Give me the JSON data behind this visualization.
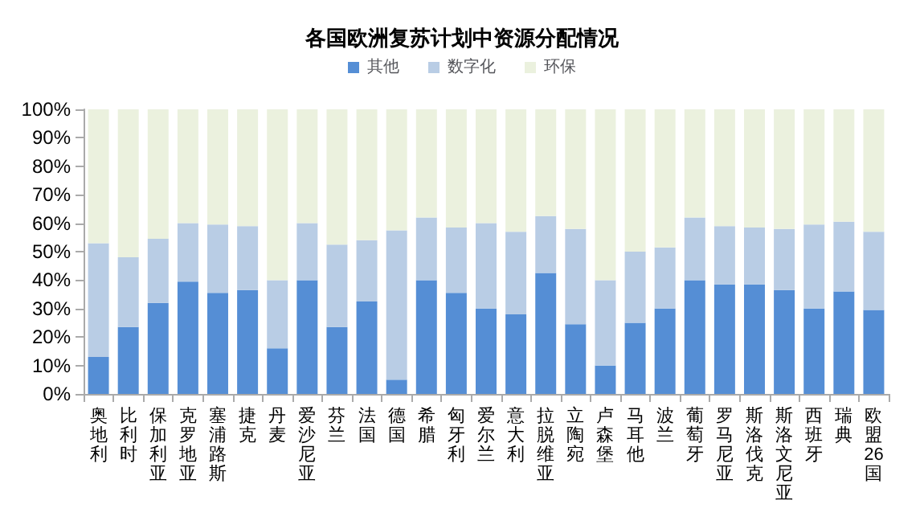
{
  "chart_data": {
    "type": "bar",
    "stacked": true,
    "title": "各国欧洲复苏计划中资源分配情况",
    "legend": "top",
    "grid": false,
    "categories": [
      "奥地利",
      "比利时",
      "保加利亚",
      "克罗地亚",
      "塞浦路斯",
      "捷克",
      "丹麦",
      "爱沙尼亚",
      "芬兰",
      "法国",
      "德国",
      "希腊",
      "匈牙利",
      "爱尔兰",
      "意大利",
      "拉脱维亚",
      "立陶宛",
      "卢森堡",
      "马耳他",
      "波兰",
      "葡萄牙",
      "罗马尼亚",
      "斯洛伐克",
      "斯洛文尼亚",
      "西班牙",
      "瑞典",
      "欧盟26国"
    ],
    "series": [
      {
        "name": "其他",
        "color": "#558ed5",
        "values": [
          13,
          23.5,
          32,
          39.5,
          35.5,
          36.5,
          16,
          40,
          23.5,
          32.5,
          5,
          40,
          35.5,
          30,
          28,
          42.5,
          24.5,
          10,
          25,
          30,
          40,
          38.5,
          38.5,
          36.5,
          30,
          36,
          29.5
        ]
      },
      {
        "name": "数字化",
        "color": "#b9cde5",
        "values": [
          40,
          24.5,
          22.5,
          20.5,
          24,
          22.5,
          24,
          20,
          29,
          21.5,
          52.5,
          22,
          23,
          30,
          29,
          20,
          33.5,
          30,
          25,
          21.5,
          22,
          20.5,
          20,
          21.5,
          29.5,
          24.5,
          27.5
        ]
      },
      {
        "name": "环保",
        "color": "#ebf1de",
        "values": [
          47,
          52,
          45.5,
          40,
          40.5,
          41,
          60,
          40,
          47.5,
          46,
          42.5,
          38,
          41.5,
          40,
          43,
          37.5,
          42,
          60,
          50,
          48.5,
          38,
          41,
          41.5,
          42,
          40.5,
          39.5,
          43
        ]
      }
    ],
    "ylim": [
      0,
      100
    ],
    "yticks": [
      {
        "value": 0,
        "label": "0%"
      },
      {
        "value": 10,
        "label": "10%"
      },
      {
        "value": 20,
        "label": "20%"
      },
      {
        "value": 30,
        "label": "30%"
      },
      {
        "value": 40,
        "label": "40%"
      },
      {
        "value": 50,
        "label": "50%"
      },
      {
        "value": 60,
        "label": "60%"
      },
      {
        "value": 70,
        "label": "70%"
      },
      {
        "value": 80,
        "label": "80%"
      },
      {
        "value": 90,
        "label": "90%"
      },
      {
        "value": 100,
        "label": "100%"
      }
    ]
  }
}
